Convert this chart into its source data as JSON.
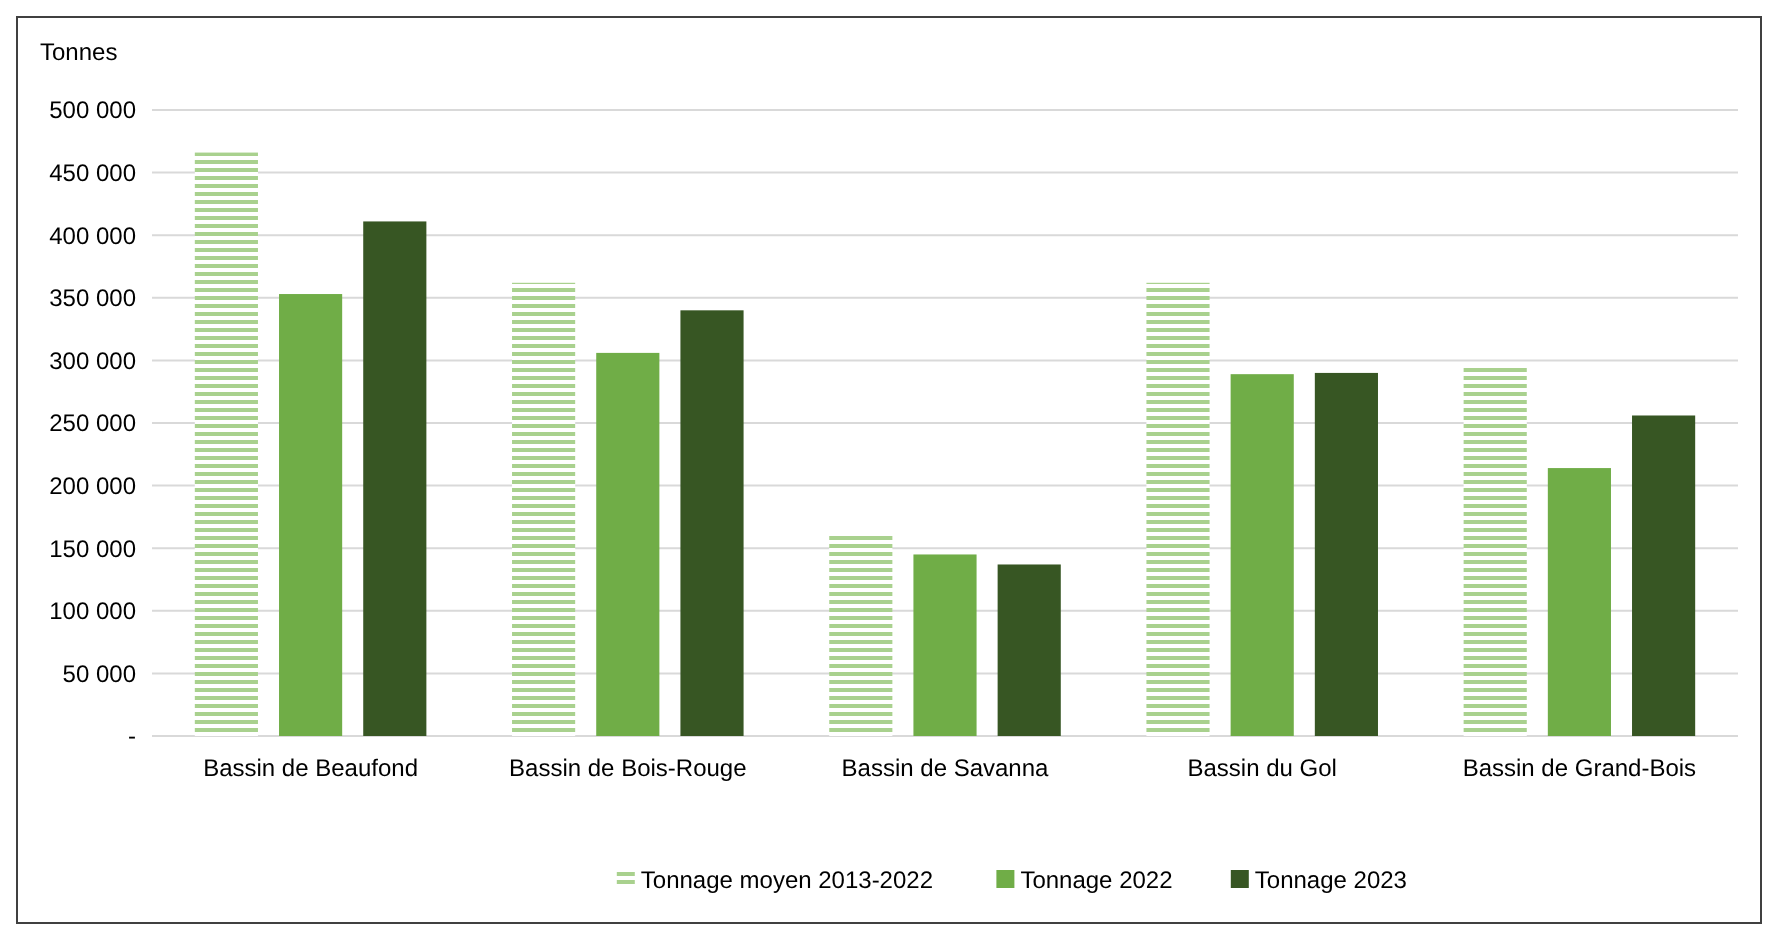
{
  "chart_data": {
    "type": "bar",
    "ylabel": "Tonnes",
    "categories": [
      "Bassin de Beaufond",
      "Bassin de Bois-Rouge",
      "Bassin de Savanna",
      "Bassin du Gol",
      "Bassin de Grand-Bois"
    ],
    "series": [
      {
        "name": "Tonnage moyen 2013-2022",
        "color": "#a9d18e",
        "values": [
          466000,
          362000,
          160000,
          362000,
          297000
        ]
      },
      {
        "name": "Tonnage 2022",
        "color": "#70ad47",
        "values": [
          353000,
          306000,
          145000,
          289000,
          214000
        ]
      },
      {
        "name": "Tonnage 2023",
        "color": "#375623",
        "values": [
          411000,
          340000,
          137000,
          290000,
          256000
        ]
      }
    ],
    "ylim": [
      0,
      500000
    ],
    "yticks": [
      {
        "value": 0,
        "label": "-"
      },
      {
        "value": 50000,
        "label": "50 000"
      },
      {
        "value": 100000,
        "label": "100 000"
      },
      {
        "value": 150000,
        "label": "150 000"
      },
      {
        "value": 200000,
        "label": "200 000"
      },
      {
        "value": 250000,
        "label": "250 000"
      },
      {
        "value": 300000,
        "label": "300 000"
      },
      {
        "value": 350000,
        "label": "350 000"
      },
      {
        "value": 400000,
        "label": "400 000"
      },
      {
        "value": 450000,
        "label": "450 000"
      },
      {
        "value": 500000,
        "label": "500 000"
      }
    ],
    "grid": true,
    "legend": "bottom"
  }
}
